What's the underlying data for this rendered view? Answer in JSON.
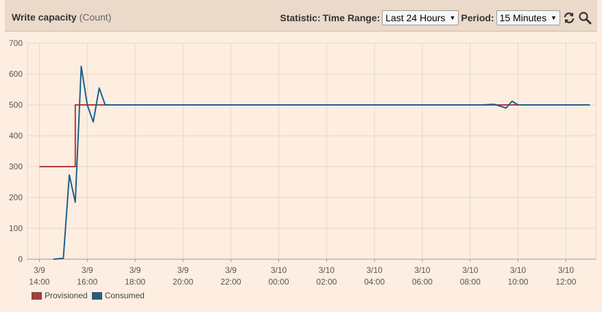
{
  "header": {
    "title": "Write capacity",
    "unit": "(Count)",
    "statistic_label": "Statistic:",
    "time_range_label": "Time Range:",
    "time_range_value": "Last 24 Hours",
    "period_label": "Period:",
    "period_value": "15 Minutes",
    "refresh_icon": "refresh-icon",
    "zoom_icon": "zoom-icon"
  },
  "chart_data": {
    "type": "line",
    "title": "Write capacity",
    "ylabel": "",
    "xlabel": "",
    "ylim": [
      0,
      700
    ],
    "yticks": [
      0,
      100,
      200,
      300,
      400,
      500,
      600,
      700
    ],
    "x_unit": "hours",
    "xlim": [
      "3/9 13:30",
      "3/10 13:15"
    ],
    "xticks": [
      {
        "line1": "3/9",
        "line2": "14:00",
        "x": "3/9 14:00"
      },
      {
        "line1": "3/9",
        "line2": "16:00",
        "x": "3/9 16:00"
      },
      {
        "line1": "3/9",
        "line2": "18:00",
        "x": "3/9 18:00"
      },
      {
        "line1": "3/9",
        "line2": "20:00",
        "x": "3/9 20:00"
      },
      {
        "line1": "3/9",
        "line2": "22:00",
        "x": "3/9 22:00"
      },
      {
        "line1": "3/10",
        "line2": "00:00",
        "x": "3/10 00:00"
      },
      {
        "line1": "3/10",
        "line2": "02:00",
        "x": "3/10 02:00"
      },
      {
        "line1": "3/10",
        "line2": "04:00",
        "x": "3/10 04:00"
      },
      {
        "line1": "3/10",
        "line2": "06:00",
        "x": "3/10 06:00"
      },
      {
        "line1": "3/10",
        "line2": "08:00",
        "x": "3/10 08:00"
      },
      {
        "line1": "3/10",
        "line2": "10:00",
        "x": "3/10 10:00"
      },
      {
        "line1": "3/10",
        "line2": "12:00",
        "x": "3/10 12:00"
      }
    ],
    "grid": true,
    "legend_position": "bottom-left",
    "series": [
      {
        "name": "Provisioned",
        "color": "#b03a3a",
        "step": true,
        "points": [
          [
            "3/9 14:00",
            300
          ],
          [
            "3/9 15:30",
            300
          ],
          [
            "3/9 15:30",
            500
          ],
          [
            "3/10 13:00",
            500
          ]
        ]
      },
      {
        "name": "Consumed",
        "color": "#1f5f8b",
        "step": false,
        "points": [
          [
            "3/9 14:35",
            0
          ],
          [
            "3/9 15:00",
            3
          ],
          [
            "3/9 15:15",
            273
          ],
          [
            "3/9 15:30",
            185
          ],
          [
            "3/9 15:45",
            625
          ],
          [
            "3/9 16:00",
            500
          ],
          [
            "3/9 16:15",
            445
          ],
          [
            "3/9 16:30",
            555
          ],
          [
            "3/9 16:45",
            500
          ],
          [
            "3/9 17:00",
            500
          ],
          [
            "3/10 08:00",
            500
          ],
          [
            "3/10 08:30",
            500
          ],
          [
            "3/10 09:00",
            502
          ],
          [
            "3/10 09:30",
            490
          ],
          [
            "3/10 09:45",
            512
          ],
          [
            "3/10 10:00",
            500
          ],
          [
            "3/10 13:00",
            500
          ]
        ]
      }
    ]
  }
}
